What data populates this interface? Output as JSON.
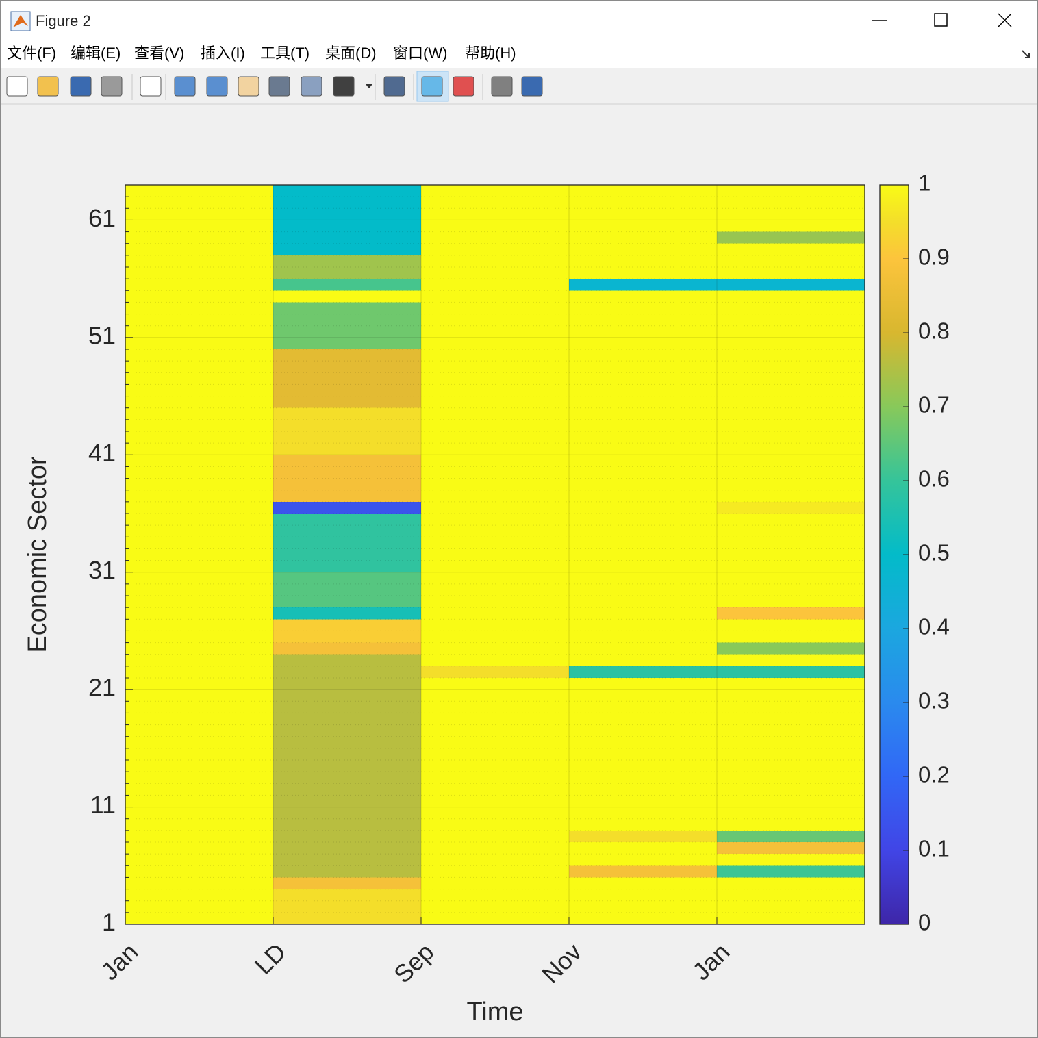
{
  "window": {
    "title": "Figure 2",
    "menu": [
      "文件(F)",
      "编辑(E)",
      "查看(V)",
      "插入(I)",
      "工具(T)",
      "桌面(D)",
      "窗口(W)",
      "帮助(H)"
    ]
  },
  "chart_data": {
    "type": "heatmap",
    "colormap": "parula",
    "xlabel": "Time",
    "ylabel": "Economic Sector",
    "x": [
      1,
      2,
      3,
      4,
      5,
      6
    ],
    "xlim": [
      1,
      6
    ],
    "xticks": [
      {
        "value": 1,
        "label": "Jan"
      },
      {
        "value": 2,
        "label": "LD"
      },
      {
        "value": 3,
        "label": "Sep"
      },
      {
        "value": 4,
        "label": "Nov"
      },
      {
        "value": 5,
        "label": "Jan"
      }
    ],
    "ylim": [
      1,
      64
    ],
    "yticks": [
      1,
      11,
      21,
      31,
      41,
      51,
      61
    ],
    "yminorticks": [
      2,
      3,
      4,
      5,
      6,
      7,
      8,
      9,
      10,
      12,
      13,
      14,
      15,
      16,
      17,
      18,
      19,
      20,
      22,
      23,
      24,
      25,
      26,
      27,
      28,
      29,
      30,
      32,
      33,
      34,
      35,
      36,
      37,
      38,
      39,
      40,
      42,
      43,
      44,
      45,
      46,
      47,
      48,
      49,
      50,
      52,
      53,
      54,
      55,
      56,
      57,
      58,
      59,
      60,
      62,
      63
    ],
    "grid": true,
    "minor_grid": true,
    "clim": [
      0,
      1
    ],
    "cticks": [
      0,
      0.1,
      0.2,
      0.3,
      0.4,
      0.5,
      0.6,
      0.7,
      0.8,
      0.9,
      1
    ],
    "z": [
      [
        1,
        1,
        1,
        1,
        1,
        1,
        1,
        1,
        1,
        1,
        1,
        1,
        1,
        1,
        1,
        1,
        1,
        1,
        1,
        1,
        1,
        1,
        1,
        1,
        1,
        1,
        1,
        1,
        1,
        1,
        1,
        1,
        1,
        1,
        1,
        1,
        1,
        1,
        1,
        1,
        1,
        1,
        1,
        1,
        1,
        1,
        1,
        1,
        1,
        1,
        1,
        1,
        1,
        1,
        1,
        1,
        1,
        1,
        1,
        1,
        1,
        1,
        1
      ],
      [
        0.95,
        0.95,
        0.95,
        0.88,
        0.76,
        0.76,
        0.76,
        0.76,
        0.76,
        0.76,
        0.76,
        0.76,
        0.76,
        0.76,
        0.76,
        0.76,
        0.76,
        0.76,
        0.76,
        0.76,
        0.76,
        0.76,
        0.76,
        0.88,
        0.92,
        0.92,
        0.54,
        0.64,
        0.64,
        0.64,
        0.59,
        0.59,
        0.59,
        0.59,
        0.59,
        0.14,
        0.88,
        0.88,
        0.88,
        0.88,
        0.95,
        0.95,
        0.95,
        0.95,
        0.83,
        0.83,
        0.83,
        0.83,
        0.83,
        0.67,
        0.67,
        0.67,
        0.67,
        1,
        0.62,
        0.73,
        0.73,
        0.5,
        0.5,
        0.5,
        0.5,
        0.5,
        0.5
      ],
      [
        1,
        1,
        1,
        1,
        1,
        1,
        1,
        1,
        1,
        1,
        1,
        1,
        1,
        1,
        1,
        1,
        1,
        1,
        1,
        1,
        1,
        0.95,
        1,
        1,
        1,
        1,
        1,
        1,
        1,
        1,
        1,
        1,
        1,
        1,
        1,
        1,
        1,
        1,
        1,
        1,
        1,
        1,
        1,
        1,
        1,
        1,
        1,
        1,
        1,
        1,
        1,
        1,
        1,
        1,
        1,
        1,
        1,
        1,
        1,
        1,
        1,
        1,
        1
      ],
      [
        1,
        1,
        1,
        1,
        0.88,
        1,
        1,
        0.95,
        1,
        1,
        1,
        1,
        1,
        1,
        1,
        1,
        1,
        1,
        1,
        1,
        1,
        0.58,
        1,
        1,
        1,
        1,
        1,
        1,
        1,
        1,
        1,
        1,
        1,
        1,
        1,
        1,
        1,
        1,
        1,
        1,
        1,
        1,
        1,
        1,
        1,
        1,
        1,
        1,
        1,
        1,
        1,
        1,
        1,
        1,
        0.47,
        1,
        1,
        1,
        1,
        1,
        1,
        1,
        1
      ],
      [
        1,
        1,
        1,
        1,
        0.61,
        1,
        0.88,
        0.66,
        1,
        1,
        1,
        1,
        1,
        1,
        1,
        1,
        1,
        1,
        1,
        1,
        1,
        0.58,
        1,
        0.7,
        1,
        1,
        0.9,
        1,
        1,
        1,
        1,
        1,
        1,
        1,
        1,
        0.97,
        1,
        1,
        1,
        1,
        1,
        1,
        1,
        1,
        1,
        1,
        1,
        1,
        1,
        1,
        1,
        1,
        1,
        1,
        0.47,
        1,
        1,
        1,
        0.72,
        1,
        1,
        1,
        1
      ]
    ]
  }
}
